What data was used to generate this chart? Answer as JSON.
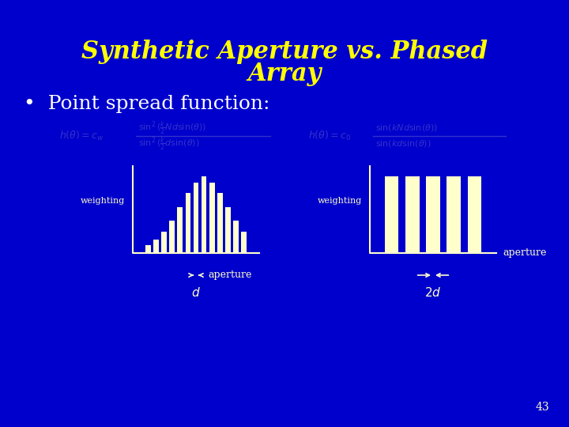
{
  "bg_color": "#0000CC",
  "title_line1": "Synthetic Aperture vs. Phased",
  "title_line2": "Array",
  "title_color": "#FFFF00",
  "title_fontsize": 22,
  "bullet_text": "  Point spread function:",
  "bullet_color": "#FFFFFF",
  "bullet_fontsize": 18,
  "eq_color": "#3333CC",
  "diagram_color": "#FFFFCC",
  "weighting_label": "weighting",
  "aperture_label": "aperture",
  "page_number": "43",
  "sa_bars": [
    0.1,
    0.18,
    0.28,
    0.42,
    0.6,
    0.78,
    0.92,
    1.0,
    0.92,
    0.78,
    0.6,
    0.42,
    0.28
  ],
  "pa_bars": [
    1.0,
    1.0,
    1.0,
    1.0,
    1.0
  ],
  "d_label": "$d$",
  "twod_label": "$2d$"
}
